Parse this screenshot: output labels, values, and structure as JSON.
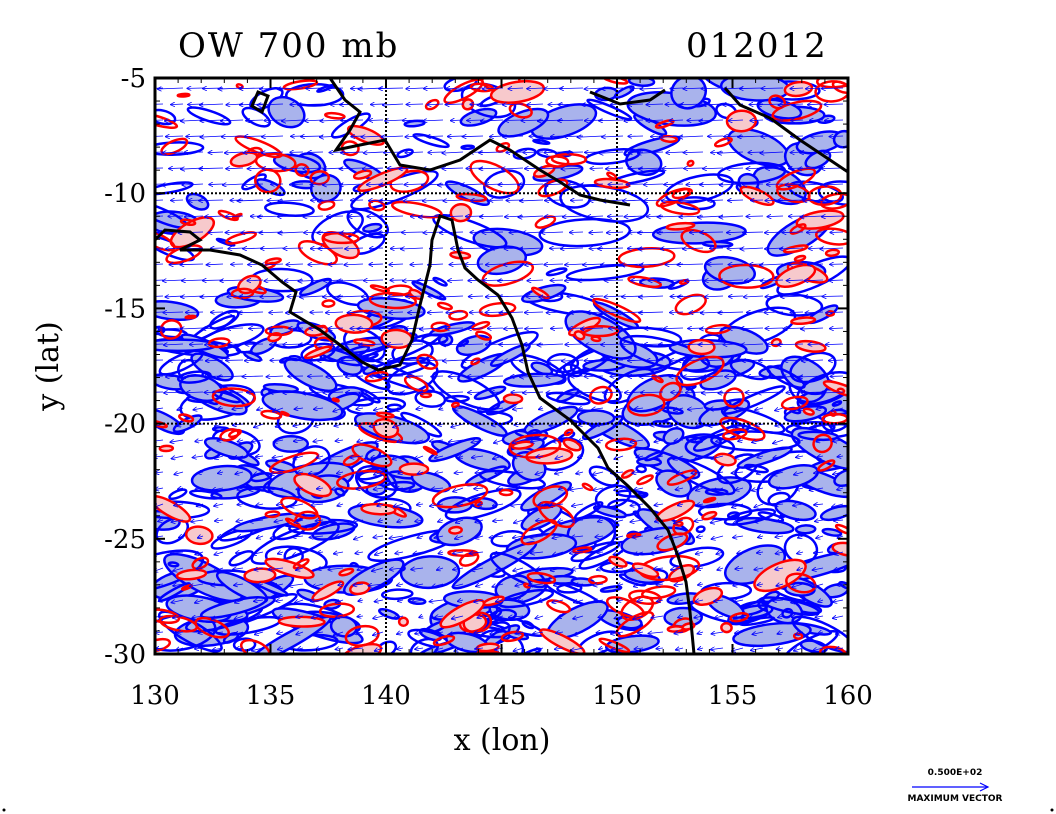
{
  "header": {
    "title_left": "OW 700 mb",
    "title_right": "012012"
  },
  "axes": {
    "xlabel": "x (lon)",
    "ylabel": "y (lat)",
    "x_ticks": [
      130,
      135,
      140,
      145,
      150,
      155,
      160
    ],
    "y_ticks": [
      -5,
      -10,
      -15,
      -20,
      -25,
      -30
    ],
    "grid_lon": [
      140,
      150
    ],
    "grid_lat": [
      -10,
      -20
    ]
  },
  "map": {
    "lon_range": [
      130,
      160
    ],
    "lat_range": [
      -30,
      -5
    ],
    "colors": {
      "negative_contour": "#0000ff",
      "negative_fill": "#a9b3ec",
      "positive_contour": "#ff0000",
      "positive_fill": "#f7c9cc",
      "coast": "#000000",
      "vector": "#0000ff"
    }
  },
  "legend": {
    "value": "0.500E+02",
    "caption": "MAXIMUM VECTOR"
  }
}
